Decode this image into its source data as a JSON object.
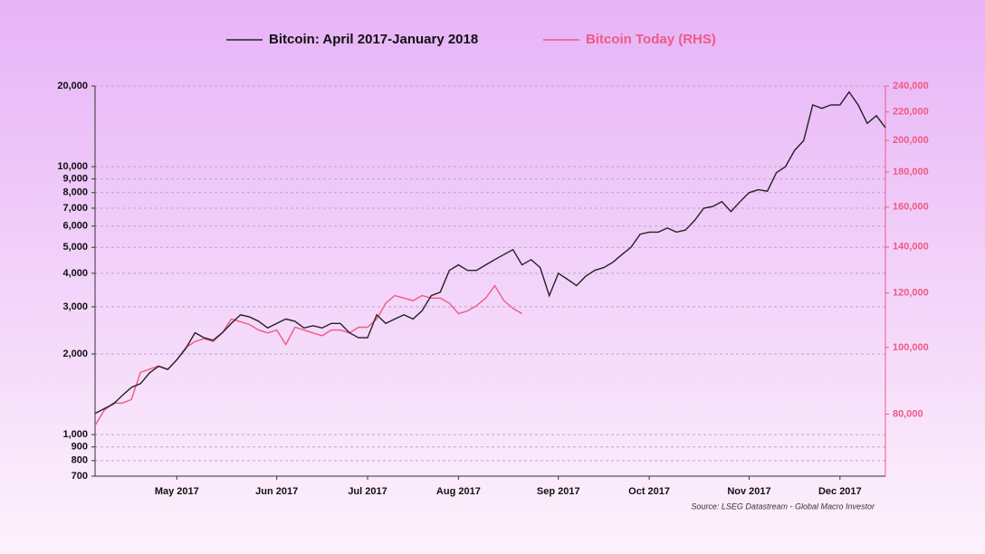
{
  "chart_data": {
    "type": "line",
    "categories": [
      null,
      null,
      null,
      null,
      null,
      null,
      null,
      null,
      null,
      "May 2017",
      null,
      null,
      null,
      null,
      null,
      null,
      null,
      null,
      null,
      null,
      "Jun 2017",
      null,
      null,
      null,
      null,
      null,
      null,
      null,
      null,
      null,
      "Jul 2017",
      null,
      null,
      null,
      null,
      null,
      null,
      null,
      null,
      null,
      "Aug 2017",
      null,
      null,
      null,
      null,
      null,
      null,
      null,
      null,
      null,
      null,
      "Sep 2017",
      null,
      null,
      null,
      null,
      null,
      null,
      null,
      null,
      null,
      "Oct 2017",
      null,
      null,
      null,
      null,
      null,
      null,
      null,
      null,
      null,
      null,
      "Nov 2017",
      null,
      null,
      null,
      null,
      null,
      null,
      null,
      null,
      null,
      "Dec 2017",
      null,
      null,
      null,
      null,
      null
    ],
    "series": [
      {
        "name": "Bitcoin: April 2017-January 2018",
        "color": "#222222",
        "values": [
          1200,
          1250,
          1300,
          1400,
          1500,
          1550,
          1700,
          1800,
          1750,
          1900,
          2100,
          2400,
          2300,
          2250,
          2400,
          2600,
          2800,
          2750,
          2650,
          2500,
          2600,
          2700,
          2650,
          2500,
          2550,
          2500,
          2600,
          2600,
          2400,
          2300,
          2300,
          2800,
          2600,
          2700,
          2800,
          2700,
          2900,
          3300,
          3400,
          4100,
          4300,
          4100,
          4100,
          4300,
          4500,
          4700,
          4900,
          4300,
          4500,
          4200,
          3300,
          4000,
          3800,
          3600,
          3900,
          4100,
          4200,
          4400,
          4700,
          5000,
          5600,
          5700,
          5700,
          5900,
          5700,
          5800,
          6300,
          7000,
          7100,
          7400,
          6800,
          7400,
          8000,
          8200,
          8100,
          9500,
          10000,
          11500,
          12500,
          17000,
          16500,
          17000,
          17000,
          19000,
          17000,
          14500,
          15500,
          14000
        ]
      },
      {
        "name": "Bitcoin Today (RHS)",
        "color": "#f05a82",
        "axis": "y2",
        "values": [
          77000,
          81000,
          83000,
          83000,
          84000,
          92000,
          93000,
          94000,
          93000,
          96000,
          100000,
          102000,
          103000,
          102000,
          105000,
          110000,
          109000,
          108000,
          106000,
          105000,
          106000,
          101000,
          107000,
          106000,
          105000,
          104000,
          106000,
          106000,
          105000,
          107000,
          107000,
          110000,
          116000,
          119000,
          118000,
          117000,
          119000,
          118000,
          118000,
          116000,
          112000,
          113000,
          115000,
          118000,
          123000,
          117000,
          114000,
          112000,
          null,
          null,
          null,
          null,
          null,
          null,
          null,
          null,
          null,
          null,
          null,
          null,
          null,
          null,
          null,
          null,
          null,
          null,
          null,
          null,
          null,
          null,
          null,
          null,
          null,
          null,
          null,
          null,
          null,
          null,
          null,
          null,
          null,
          null,
          null,
          null,
          null,
          null,
          null,
          null
        ]
      }
    ],
    "ylim": [
      700,
      20000
    ],
    "yticks": [
      700,
      800,
      900,
      {
        "value": 1000,
        "label": "1,000"
      },
      {
        "value": 2000,
        "label": "2,000"
      },
      {
        "value": 3000,
        "label": "3,000"
      },
      {
        "value": 4000,
        "label": "4,000"
      },
      {
        "value": 5000,
        "label": "5,000"
      },
      {
        "value": 6000,
        "label": "6,000"
      },
      {
        "value": 7000,
        "label": "7,000"
      },
      {
        "value": 8000,
        "label": "8,000"
      },
      {
        "value": 9000,
        "label": "9,000"
      },
      {
        "value": 10000,
        "label": "10,000"
      },
      {
        "value": 20000,
        "label": "20,000"
      }
    ],
    "y2lim": [
      65000,
      240000
    ],
    "y2ticks": [
      {
        "value": 80000,
        "label": "80,000"
      },
      {
        "value": 100000,
        "label": "100,000"
      },
      {
        "value": 120000,
        "label": "120,000"
      },
      {
        "value": 140000,
        "label": "140,000"
      },
      {
        "value": 160000,
        "label": "160,000"
      },
      {
        "value": 180000,
        "label": "180,000"
      },
      {
        "value": 200000,
        "label": "200,000"
      },
      {
        "value": 220000,
        "label": "220,000"
      },
      {
        "value": 240000,
        "label": "240,000"
      }
    ],
    "log_scale": true,
    "grid": true,
    "source": "Source: LSEG Datastream - Global Macro Investor"
  }
}
